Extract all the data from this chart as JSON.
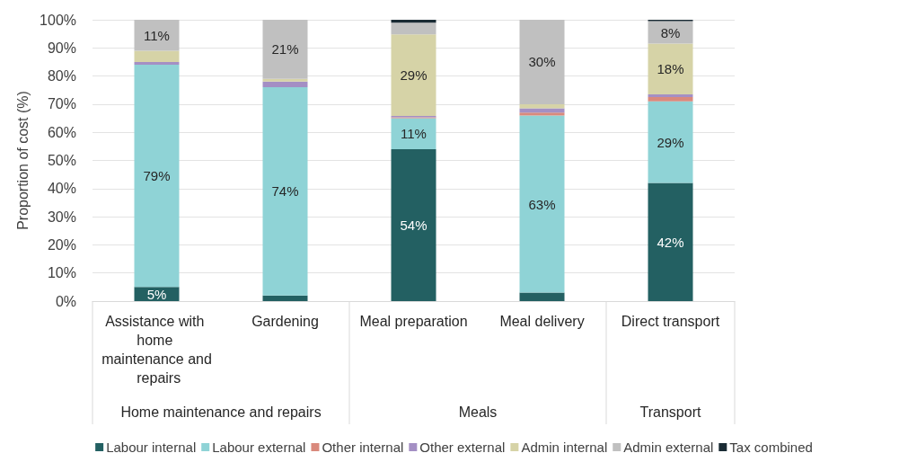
{
  "chart_data": {
    "type": "bar",
    "stacked": true,
    "ylabel": "Proportion of cost (%)",
    "categories": [
      "Assistance with home maintenance and repairs",
      "Gardening",
      "Meal preparation",
      "Meal delivery",
      "Direct transport"
    ],
    "series": [
      {
        "name": "Labour internal",
        "color": "#236062",
        "values": [
          5,
          2,
          54,
          3,
          42
        ],
        "value_labels": [
          "5%",
          null,
          "54%",
          null,
          "42%"
        ]
      },
      {
        "name": "Labour external",
        "color": "#8fd3d6",
        "values": [
          79,
          74,
          11,
          63,
          29
        ],
        "value_labels": [
          "79%",
          "74%",
          "11%",
          "63%",
          "29%"
        ]
      },
      {
        "name": "Other internal",
        "color": "#d9897c",
        "values": [
          0,
          0,
          0.3,
          1,
          1.5
        ]
      },
      {
        "name": "Other external",
        "color": "#a48fc4",
        "values": [
          1,
          2,
          0.5,
          1.5,
          1
        ]
      },
      {
        "name": "Admin internal",
        "color": "#d6d3a7",
        "values": [
          4,
          1,
          29,
          1.5,
          18
        ],
        "value_labels": [
          null,
          null,
          "29%",
          null,
          "18%"
        ]
      },
      {
        "name": "Admin external",
        "color": "#c0c0c0",
        "values": [
          11,
          21,
          4.2,
          30,
          8
        ],
        "value_labels": [
          "11%",
          "21%",
          null,
          "30%",
          "8%"
        ]
      },
      {
        "name": "Tax combined",
        "color": "#1a2b34",
        "values": [
          0,
          0,
          1,
          0,
          0.5
        ]
      }
    ],
    "ylim": [
      0,
      100
    ],
    "yticks": [
      {
        "value": 0,
        "label": "0%"
      },
      {
        "value": 10,
        "label": "10%"
      },
      {
        "value": 20,
        "label": "20%"
      },
      {
        "value": 30,
        "label": "30%"
      },
      {
        "value": 40,
        "label": "40%"
      },
      {
        "value": 50,
        "label": "50%"
      },
      {
        "value": 60,
        "label": "60%"
      },
      {
        "value": 70,
        "label": "70%"
      },
      {
        "value": 80,
        "label": "80%"
      },
      {
        "value": 90,
        "label": "90%"
      },
      {
        "value": 100,
        "label": "100%"
      }
    ],
    "annotations": [
      "Home maintenance and repairs",
      "Meals",
      "Transport"
    ],
    "grid": "y",
    "legend": "bottom"
  }
}
